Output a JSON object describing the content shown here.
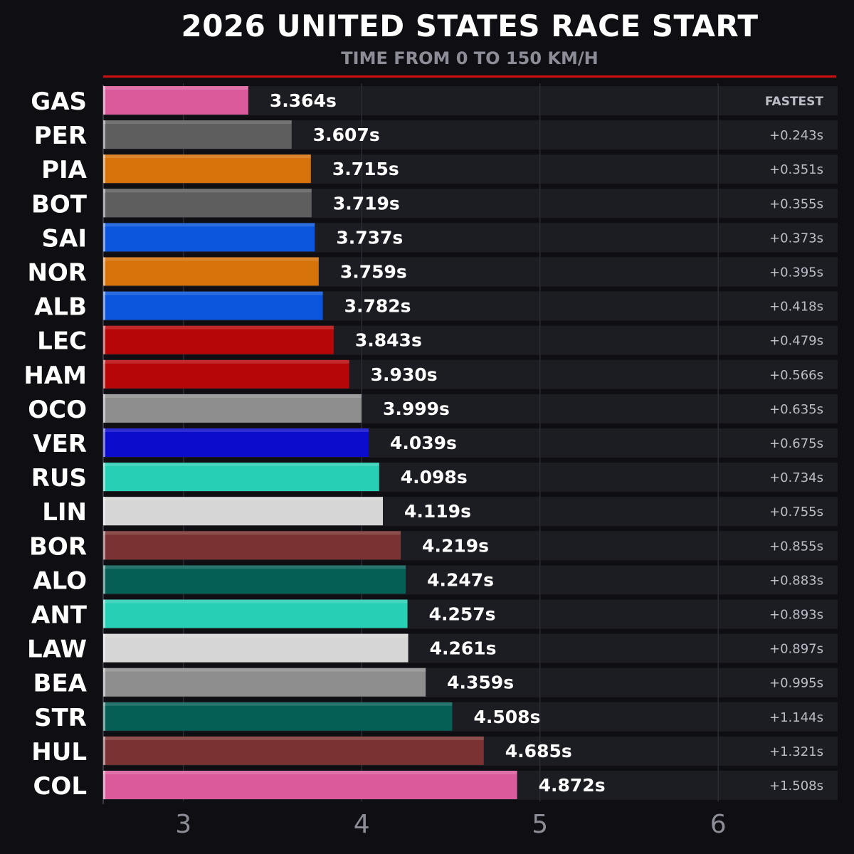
{
  "header": {
    "title": "2026 UNITED STATES RACE START",
    "subtitle": "TIME FROM 0 TO 150 KM/H"
  },
  "colors": {
    "background": "#0f0f13",
    "row_background": "#1c1c23",
    "accent_line": "#d01010",
    "gap_text": "#bdbdc6",
    "axis_text": "#8d8d97"
  },
  "chart_data": {
    "type": "bar",
    "orientation": "horizontal",
    "title": "2026 UNITED STATES RACE START",
    "subtitle": "TIME FROM 0 TO 150 KM/H",
    "xlim": [
      2.55,
      6.67
    ],
    "xticks": [
      3,
      4,
      5,
      6
    ],
    "grid": true,
    "categories": [
      "GAS",
      "PER",
      "PIA",
      "BOT",
      "SAI",
      "NOR",
      "ALB",
      "LEC",
      "HAM",
      "OCO",
      "VER",
      "RUS",
      "LIN",
      "BOR",
      "ALO",
      "ANT",
      "LAW",
      "BEA",
      "STR",
      "HUL",
      "COL"
    ],
    "values": [
      3.364,
      3.607,
      3.715,
      3.719,
      3.737,
      3.759,
      3.782,
      3.843,
      3.93,
      3.999,
      4.039,
      4.098,
      4.119,
      4.219,
      4.247,
      4.257,
      4.261,
      4.359,
      4.508,
      4.685,
      4.872
    ],
    "value_labels": [
      "3.364s",
      "3.607s",
      "3.715s",
      "3.719s",
      "3.737s",
      "3.759s",
      "3.782s",
      "3.843s",
      "3.930s",
      "3.999s",
      "4.039s",
      "4.098s",
      "4.119s",
      "4.219s",
      "4.247s",
      "4.257s",
      "4.261s",
      "4.359s",
      "4.508s",
      "4.685s",
      "4.872s"
    ],
    "gap_labels": [
      "FASTEST",
      "+0.243s",
      "+0.351s",
      "+0.355s",
      "+0.373s",
      "+0.395s",
      "+0.418s",
      "+0.479s",
      "+0.566s",
      "+0.635s",
      "+0.675s",
      "+0.734s",
      "+0.755s",
      "+0.855s",
      "+0.883s",
      "+0.893s",
      "+0.897s",
      "+0.995s",
      "+1.144s",
      "+1.321s",
      "+1.508s"
    ],
    "bar_colors": [
      "#d95b9b",
      "#5e5e5e",
      "#d6720a",
      "#5e5e5e",
      "#0a55db",
      "#d6720a",
      "#0a55db",
      "#b70608",
      "#b70608",
      "#8e8e8e",
      "#0b0bcc",
      "#27cfb4",
      "#d6d6d6",
      "#7b3232",
      "#055f55",
      "#27cfb4",
      "#d6d6d6",
      "#8e8e8e",
      "#055f55",
      "#7b3232",
      "#d95b9b"
    ]
  }
}
